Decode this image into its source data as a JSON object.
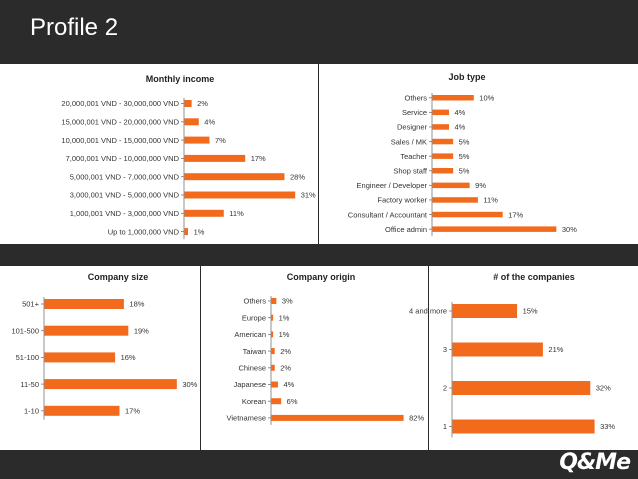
{
  "page": {
    "title": "Profile 2",
    "logo_text": "Q&Me"
  },
  "colors": {
    "bar": "#f26b1d",
    "background": "#2b2b2b",
    "panel": "#ffffff"
  },
  "chart_data": [
    {
      "id": "income",
      "type": "bar",
      "orientation": "horizontal",
      "title": "Monthly income",
      "categories": [
        "20,000,001 VND - 30,000,000 VND",
        "15,000,001 VND - 20,000,000 VND",
        "10,000,001 VND - 15,000,000 VND",
        "7,000,001 VND - 10,000,000 VND",
        "5,000,001 VND - 7,000,000 VND",
        "3,000,001 VND - 5,000,000 VND",
        "1,000,001 VND - 3,000,000 VND",
        "Up to 1,000,000 VND"
      ],
      "values": [
        2,
        4,
        7,
        17,
        28,
        31,
        11,
        1
      ],
      "value_labels": [
        "2%",
        "4%",
        "7%",
        "17%",
        "28%",
        "31%",
        "11%",
        "1%"
      ],
      "xlim": [
        0,
        35
      ]
    },
    {
      "id": "job",
      "type": "bar",
      "orientation": "horizontal",
      "title": "Job type",
      "categories": [
        "Others",
        "Service",
        "Designer",
        "Sales / MK",
        "Teacher",
        "Shop staff",
        "Engineer / Developer",
        "Factory worker",
        "Consultant / Accountant",
        "Office admin"
      ],
      "values": [
        10,
        4,
        4,
        5,
        5,
        5,
        9,
        11,
        17,
        30
      ],
      "value_labels": [
        "10%",
        "4%",
        "4%",
        "5%",
        "5%",
        "5%",
        "9%",
        "11%",
        "17%",
        "30%"
      ],
      "xlim": [
        0,
        31
      ]
    },
    {
      "id": "size",
      "type": "bar",
      "orientation": "horizontal",
      "title": "Company size",
      "categories": [
        "501+",
        "101-500",
        "51-100",
        "11-50",
        "1-10"
      ],
      "values": [
        18,
        19,
        16,
        30,
        17
      ],
      "value_labels": [
        "18%",
        "19%",
        "16%",
        "30%",
        "17%"
      ],
      "xlim": [
        0,
        34
      ]
    },
    {
      "id": "origin",
      "type": "bar",
      "orientation": "horizontal",
      "title": "Company origin",
      "categories": [
        "Others",
        "Europe",
        "American",
        "Taiwan",
        "Chinese",
        "Japanese",
        "Korean",
        "Vietnamese"
      ],
      "values": [
        3,
        1,
        1,
        2,
        2,
        4,
        6,
        82
      ],
      "value_labels": [
        "3%",
        "1%",
        "1%",
        "2%",
        "2%",
        "4%",
        "6%",
        "82%"
      ],
      "xlim": [
        0,
        90
      ]
    },
    {
      "id": "count",
      "type": "bar",
      "orientation": "horizontal",
      "title": "# of the companies",
      "categories": [
        "4 and more",
        "3",
        "2",
        "1"
      ],
      "values": [
        15,
        21,
        32,
        33
      ],
      "value_labels": [
        "15%",
        "21%",
        "32%",
        "33%"
      ],
      "xlim": [
        0,
        36
      ]
    }
  ]
}
